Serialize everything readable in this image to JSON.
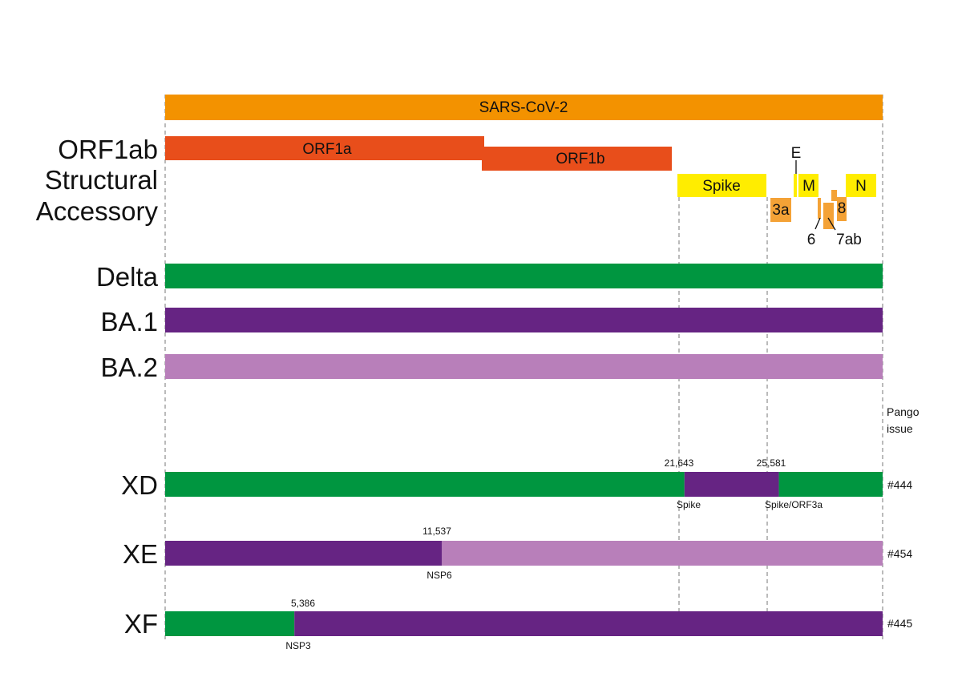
{
  "colors": {
    "sars": "#f39200",
    "orf1": "#e84e1b",
    "structural": "#ffed00",
    "accessory": "#f4a236",
    "delta": "#009640",
    "ba1": "#662483",
    "ba2": "#b87fba"
  },
  "genome": {
    "label": "SARS-CoV-2",
    "length": 29903
  },
  "row_labels": {
    "orf1ab": "ORF1ab",
    "structural": "Structural",
    "accessory": "Accessory",
    "delta": "Delta",
    "ba1": "BA.1",
    "ba2": "BA.2",
    "xd": "XD",
    "xe": "XE",
    "xf": "XF"
  },
  "genes": {
    "orf1a": "ORF1a",
    "orf1b": "ORF1b",
    "spike": "Spike",
    "e": "E",
    "m": "M",
    "n": "N",
    "g3a": "3a",
    "g6": "6",
    "g7ab": "7ab",
    "g8": "8"
  },
  "pango": {
    "header_line1": "Pango",
    "header_line2": "issue",
    "xd": "#444",
    "xe": "#454",
    "xf": "#445"
  },
  "recombinants": {
    "xd": {
      "segments": [
        {
          "parent": "delta",
          "start": 1,
          "end": 21643
        },
        {
          "parent": "ba1",
          "start": 21643,
          "end": 25581
        },
        {
          "parent": "delta",
          "start": 25581,
          "end": 29903
        }
      ],
      "breakpoints": [
        {
          "position": 21643,
          "label": "21,643",
          "region": "Spike"
        },
        {
          "position": 25581,
          "label": "25,581",
          "region": "Spike/ORF3a"
        }
      ]
    },
    "xe": {
      "segments": [
        {
          "parent": "ba1",
          "start": 1,
          "end": 11537
        },
        {
          "parent": "ba2",
          "start": 11537,
          "end": 29903
        }
      ],
      "breakpoints": [
        {
          "position": 11537,
          "label": "11,537",
          "region": "NSP6"
        }
      ]
    },
    "xf": {
      "segments": [
        {
          "parent": "delta",
          "start": 1,
          "end": 5386
        },
        {
          "parent": "ba1",
          "start": 5386,
          "end": 29903
        }
      ],
      "breakpoints": [
        {
          "position": 5386,
          "label": "5,386",
          "region": "NSP3"
        }
      ]
    }
  }
}
